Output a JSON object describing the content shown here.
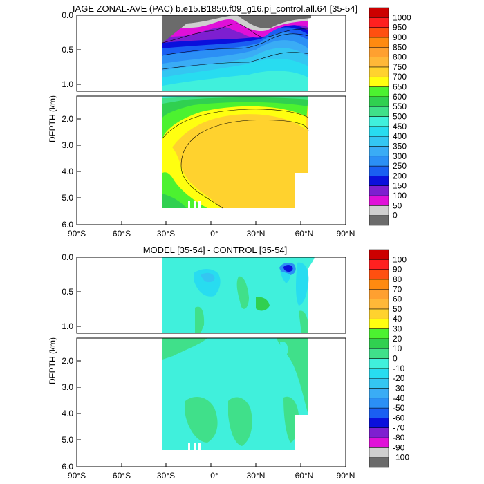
{
  "chart_data": [
    {
      "type": "heatmap",
      "title": "IAGE ZONAL-AVE (PAC) b.e15.B1850.f09_g16.pi_control.all.64 [35-54]",
      "ylabel": "DEPTH (km)",
      "xlim": [
        -90,
        90
      ],
      "ylim": [
        6.0,
        0.0
      ],
      "xticks": [
        "90°S",
        "60°S",
        "30°S",
        "0°",
        "30°N",
        "60°N",
        "90°N"
      ],
      "yticks_upper": [
        "0.0",
        "0.5",
        "1.0"
      ],
      "yticks_lower": [
        "2.0",
        "3.0",
        "4.0",
        "5.0",
        "6.0"
      ],
      "data_extent": {
        "lat_min": -34,
        "lat_max": 62,
        "depth_max_km": 5.4
      },
      "colorbar": {
        "labels": [
          "0",
          "50",
          "100",
          "150",
          "200",
          "250",
          "300",
          "350",
          "400",
          "450",
          "500",
          "550",
          "600",
          "650",
          "700",
          "750",
          "800",
          "850",
          "900",
          "950",
          "1000"
        ],
        "colors": [
          "#6b6b6b",
          "#cfcfcf",
          "#e010d8",
          "#7e1fd0",
          "#0a10dc",
          "#1a5ff2",
          "#2b8ff5",
          "#3aacf5",
          "#34c6f2",
          "#28dcf0",
          "#40f0dc",
          "#40e08a",
          "#30d050",
          "#4cf230",
          "#ffff10",
          "#ffd22e",
          "#ffb838",
          "#ffa030",
          "#ff8a10",
          "#ff5010",
          "#ff2020",
          "#cc0000"
        ]
      }
    },
    {
      "type": "heatmap",
      "title": "MODEL [35-54] - CONTROL [35-54]",
      "ylabel": "DEPTH (km)",
      "xlim": [
        -90,
        90
      ],
      "ylim": [
        6.0,
        0.0
      ],
      "xticks": [
        "90°S",
        "60°S",
        "30°S",
        "0°",
        "30°N",
        "60°N",
        "90°N"
      ],
      "yticks_upper": [
        "0.0",
        "0.5",
        "1.0"
      ],
      "yticks_lower": [
        "2.0",
        "3.0",
        "4.0",
        "5.0",
        "6.0"
      ],
      "data_extent": {
        "lat_min": -34,
        "lat_max": 62,
        "depth_max_km": 5.4
      },
      "colorbar": {
        "labels": [
          "-100",
          "-90",
          "-80",
          "-70",
          "-60",
          "-50",
          "-40",
          "-30",
          "-20",
          "-10",
          "0",
          "10",
          "20",
          "30",
          "40",
          "50",
          "60",
          "70",
          "80",
          "90",
          "100"
        ],
        "colors": [
          "#6b6b6b",
          "#cfcfcf",
          "#e010d8",
          "#7e1fd0",
          "#0a10dc",
          "#1a5ff2",
          "#2b8ff5",
          "#3aacf5",
          "#34c6f2",
          "#28dcf0",
          "#40f0dc",
          "#40e08a",
          "#30d050",
          "#4cf230",
          "#ffff10",
          "#ffd22e",
          "#ffb838",
          "#ffa030",
          "#ff8a10",
          "#ff5010",
          "#ff2020",
          "#cc0000"
        ]
      }
    }
  ]
}
